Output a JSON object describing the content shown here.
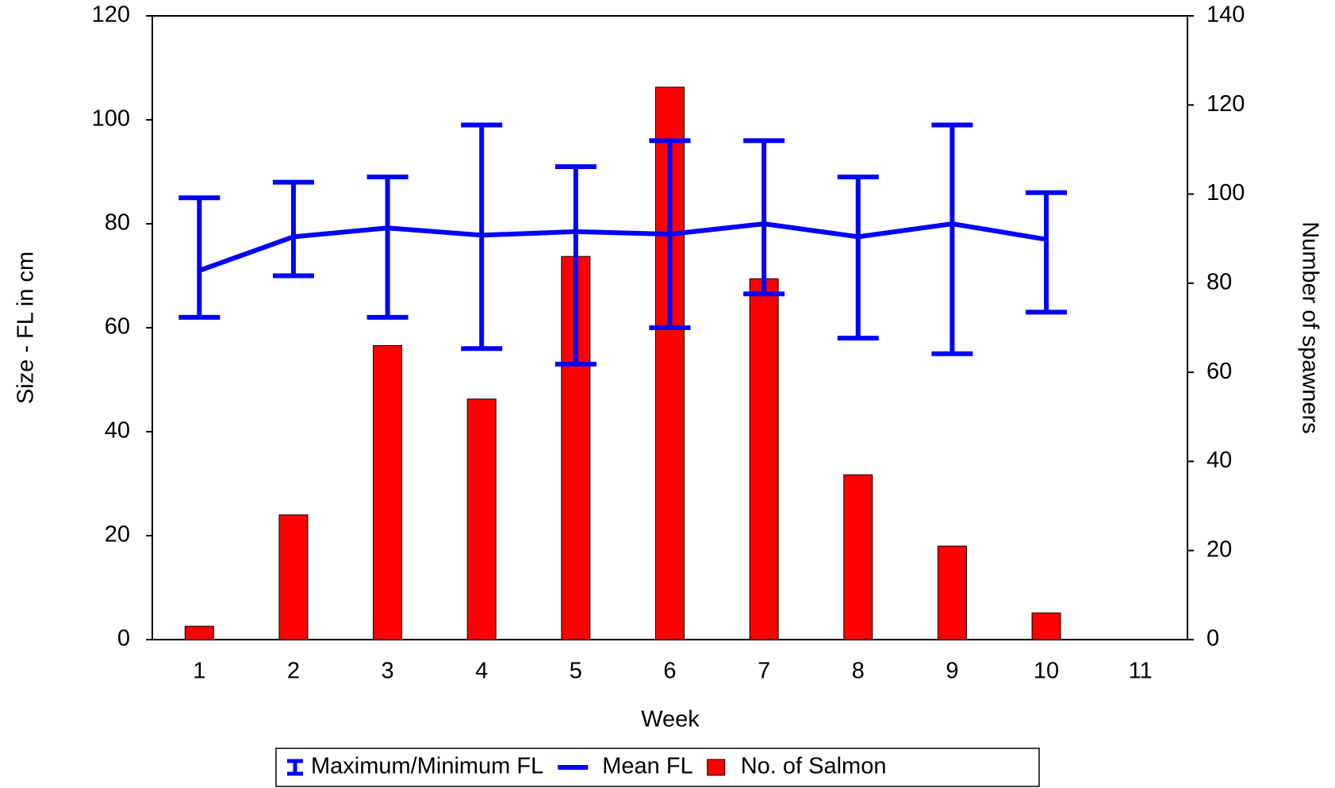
{
  "chart_data": {
    "type": "combo",
    "x_label": "Week",
    "y_label": "Size - FL in cm",
    "y2_label": "Number of spawners",
    "x": [
      1,
      2,
      3,
      4,
      5,
      6,
      7,
      8,
      9,
      10,
      11
    ],
    "xlim": [
      0.5,
      11.5
    ],
    "ylim": [
      0,
      120
    ],
    "yticks": [
      0,
      20,
      40,
      60,
      80,
      100,
      120
    ],
    "y2lim": [
      0,
      140
    ],
    "y2ticks": [
      0,
      20,
      40,
      60,
      80,
      100,
      120,
      140
    ],
    "legend": "bottom",
    "series": [
      {
        "name": "No. of Salmon",
        "type": "bar",
        "axis": "y2",
        "color": "#ff0000",
        "values": [
          3,
          28,
          66,
          54,
          86,
          124,
          81,
          37,
          21,
          6,
          null
        ]
      },
      {
        "name": "Maximum/Minimum FL",
        "type": "errorbar",
        "color": "#0000ff",
        "high": [
          85,
          88,
          89,
          99,
          91,
          96,
          96,
          89,
          99,
          86,
          null
        ],
        "low": [
          62,
          70,
          62,
          56,
          53,
          60,
          66.5,
          58,
          55,
          63,
          null
        ]
      },
      {
        "name": "Mean FL",
        "type": "line",
        "color": "#0000ff",
        "values": [
          71,
          77.5,
          79.2,
          77.8,
          78.5,
          78,
          80,
          77.5,
          80,
          77,
          null
        ]
      }
    ]
  }
}
